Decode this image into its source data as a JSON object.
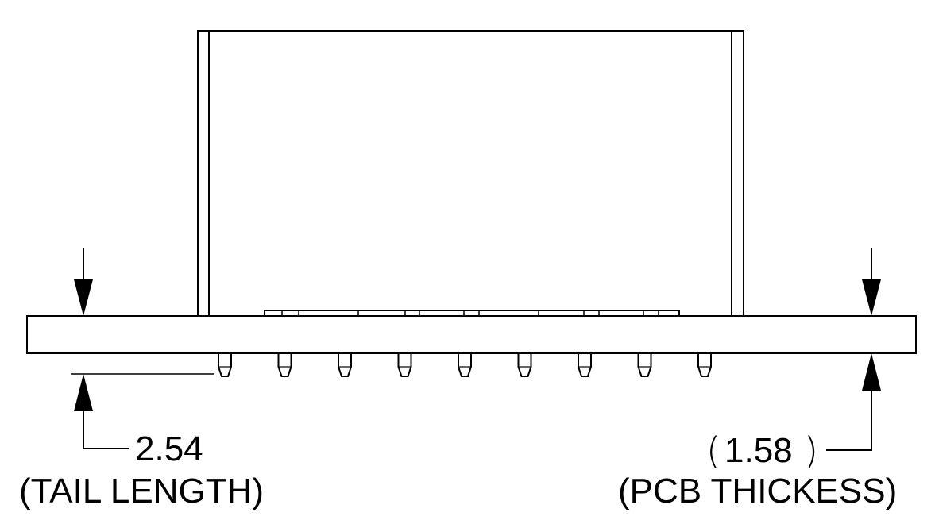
{
  "drawing": {
    "left_dimension": {
      "value": "2.54",
      "caption": "(TAIL LENGTH)"
    },
    "right_dimension": {
      "open_paren": "(",
      "value": "1.58",
      "close_paren": ")",
      "caption": "(PCB THICKESS)"
    },
    "tail_count": 9,
    "colors": {
      "line": "#000000",
      "background": "#ffffff"
    }
  }
}
